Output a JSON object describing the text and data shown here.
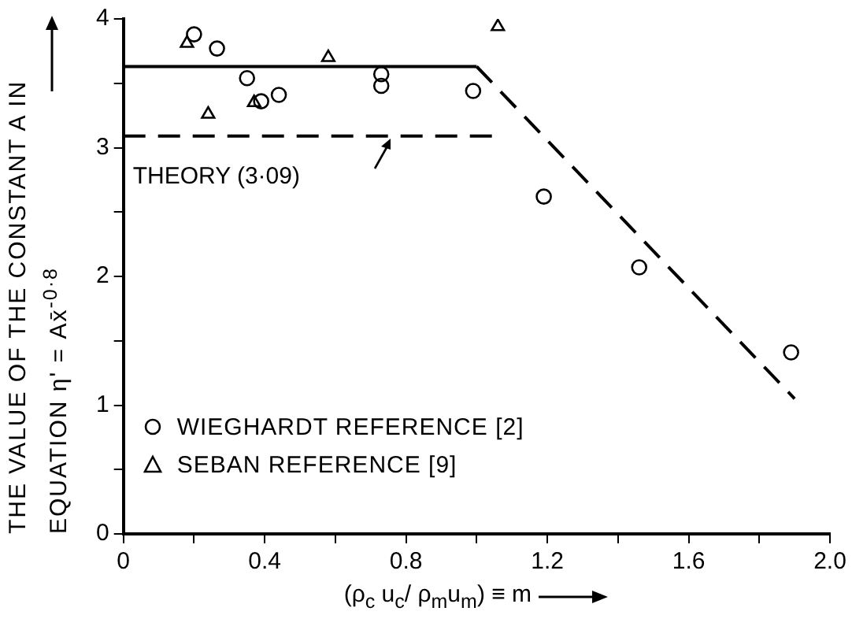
{
  "chart_data": {
    "type": "scatter",
    "xlabel": "(ρ$_{c}$ u$_{c}$/ ρ$_{m}$u$_{m}$) ≡ m",
    "ylabel": "THE VALUE OF THE CONSTANT A IN EQUATION η' = Ax̄$^{-0·8}$",
    "series": [
      {
        "name": "WIEGHARDT REFERENCE [2]",
        "color": "#000000",
        "marker": "circle",
        "x": [
          0.2,
          0.265,
          0.35,
          0.39,
          0.44,
          0.73,
          0.73,
          0.99,
          1.19,
          1.46,
          1.89
        ],
        "values": [
          3.88,
          3.77,
          3.54,
          3.36,
          3.41,
          3.57,
          3.48,
          3.44,
          2.62,
          2.07,
          1.41
        ]
      },
      {
        "name": "SEBAN REFERENCE [9]",
        "color": "#000000",
        "marker": "triangle",
        "x": [
          0.18,
          0.24,
          0.37,
          0.58,
          1.06
        ],
        "values": [
          3.81,
          3.26,
          3.35,
          3.7,
          3.94
        ]
      },
      {
        "type": "line",
        "color": "#000000",
        "line_style": "solid",
        "marker": "none",
        "x": [
          0,
          1.0
        ],
        "values": [
          3.63,
          3.63
        ]
      },
      {
        "type": "line",
        "color": "#000000",
        "line_style": "dashed",
        "marker": "none",
        "x": [
          1.0,
          1.9
        ],
        "values": [
          3.63,
          1.05
        ]
      },
      {
        "type": "line",
        "color": "#000000",
        "line_style": "dashed",
        "marker": "none",
        "x": [
          0,
          1.05
        ],
        "values": [
          3.09,
          3.09
        ]
      }
    ],
    "annotations": [
      "THEORY (3·09)"
    ],
    "xlim": [
      0,
      2.0
    ],
    "xticks": [
      0,
      {
        "value": 0.2,
        "label": null
      },
      0.4,
      {
        "value": 0.6,
        "label": null
      },
      0.8,
      {
        "value": 1.0,
        "label": null
      },
      1.2,
      {
        "value": 1.4,
        "label": null
      },
      1.6,
      {
        "value": 1.8,
        "label": null
      },
      {
        "value": 2.0,
        "label": "2.0"
      }
    ],
    "ylim": [
      0,
      4
    ],
    "yticks": [
      0,
      {
        "value": 0.5,
        "label": null
      },
      1,
      {
        "value": 1.5,
        "label": null
      },
      2,
      {
        "value": 2.5,
        "label": null
      },
      3,
      {
        "value": 3.5,
        "label": null
      },
      4
    ],
    "grid": false,
    "legend": "bottom left"
  }
}
